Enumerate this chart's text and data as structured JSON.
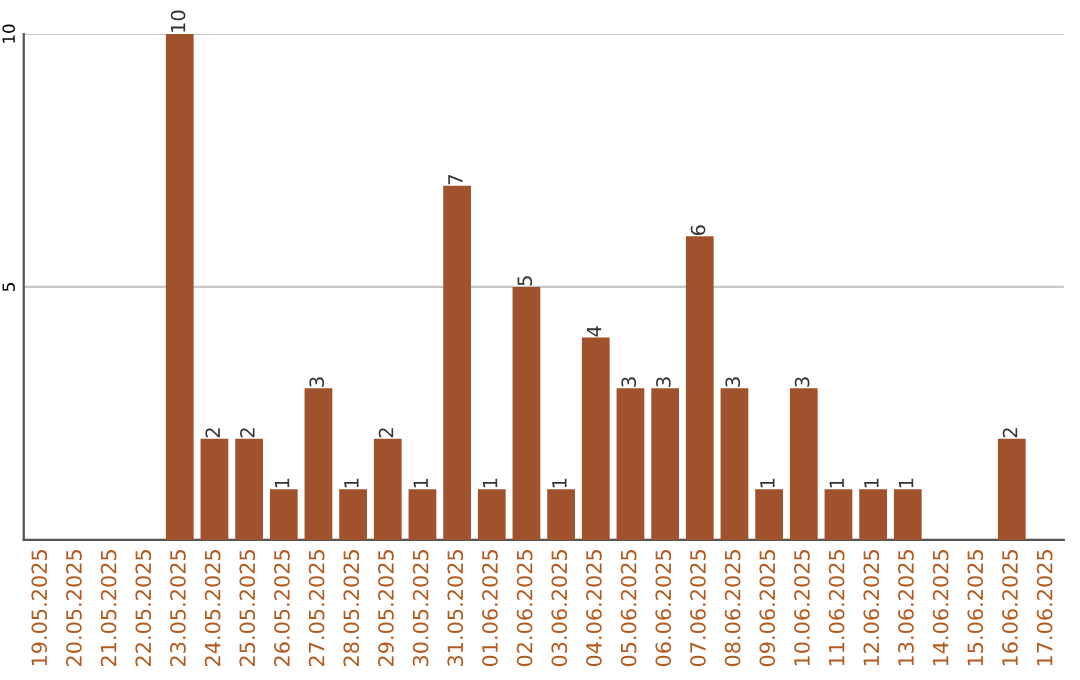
{
  "chart_data": {
    "type": "bar",
    "categories": [
      "19.05.2025",
      "20.05.2025",
      "21.05.2025",
      "22.05.2025",
      "23.05.2025",
      "24.05.2025",
      "25.05.2025",
      "26.05.2025",
      "27.05.2025",
      "28.05.2025",
      "29.05.2025",
      "30.05.2025",
      "31.05.2025",
      "01.06.2025",
      "02.06.2025",
      "03.06.2025",
      "04.06.2025",
      "05.06.2025",
      "06.06.2025",
      "07.06.2025",
      "08.06.2025",
      "09.06.2025",
      "10.06.2025",
      "11.06.2025",
      "12.06.2025",
      "13.06.2025",
      "14.06.2025",
      "15.06.2025",
      "16.06.2025",
      "17.06.2025"
    ],
    "values": [
      null,
      null,
      null,
      null,
      10,
      2,
      2,
      1,
      3,
      1,
      2,
      1,
      7,
      1,
      5,
      1,
      4,
      3,
      3,
      6,
      3,
      1,
      3,
      1,
      1,
      1,
      null,
      null,
      2,
      null
    ],
    "color": "#a0522d",
    "ylim": [
      0,
      10
    ],
    "yticks": [
      5,
      10
    ],
    "grid": "y",
    "data_labels": true
  }
}
